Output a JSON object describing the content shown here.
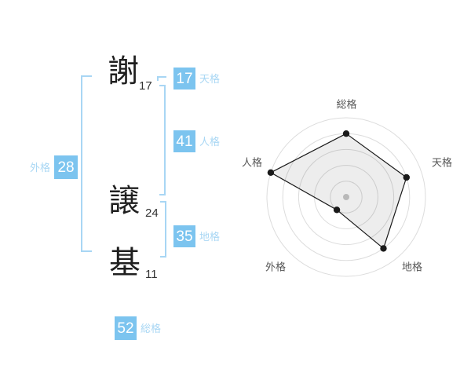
{
  "name": {
    "characters": [
      {
        "char": "謝",
        "strokes": "17"
      },
      {
        "char": "譲",
        "strokes": "24"
      },
      {
        "char": "基",
        "strokes": "11"
      }
    ]
  },
  "scores": [
    {
      "id": "tenkaku",
      "label": "天格",
      "value": "17"
    },
    {
      "id": "jinkaku",
      "label": "人格",
      "value": "41"
    },
    {
      "id": "chikaku",
      "label": "地格",
      "value": "35"
    },
    {
      "id": "gaikaku",
      "label": "外格",
      "value": "28"
    },
    {
      "id": "soukaku",
      "label": "総格",
      "value": "52"
    }
  ],
  "colors": {
    "background": "#ffffff",
    "badge_bg": "#7cc4ef",
    "badge_text": "#ffffff",
    "chip_label": "#a9d7f4",
    "bracket": "#a8d6f4",
    "kanji": "#1f1f1f",
    "stroke_count": "#333333"
  },
  "chart_data": {
    "type": "radar",
    "title": "",
    "categories": [
      "総格",
      "天格",
      "地格",
      "外格",
      "人格"
    ],
    "score_values": [
      52,
      17,
      35,
      28,
      41
    ],
    "values_fraction": [
      0.8,
      0.8,
      0.8,
      0.2,
      1.0
    ],
    "rings_fraction": [
      0.2,
      0.4,
      0.6,
      0.8,
      1.0
    ],
    "start_angle_deg": 90,
    "direction": "clockwise",
    "grid": "concentric-circles",
    "spokes": false,
    "legend": "none",
    "colors": {
      "ring": "#dcdcdc",
      "polygon_fill": "rgba(0,0,0,0.07)",
      "polygon_stroke": "#1a1a1a",
      "point": "#1a1a1a",
      "center_dot": "#b9b9b9",
      "label": "#555555"
    }
  }
}
